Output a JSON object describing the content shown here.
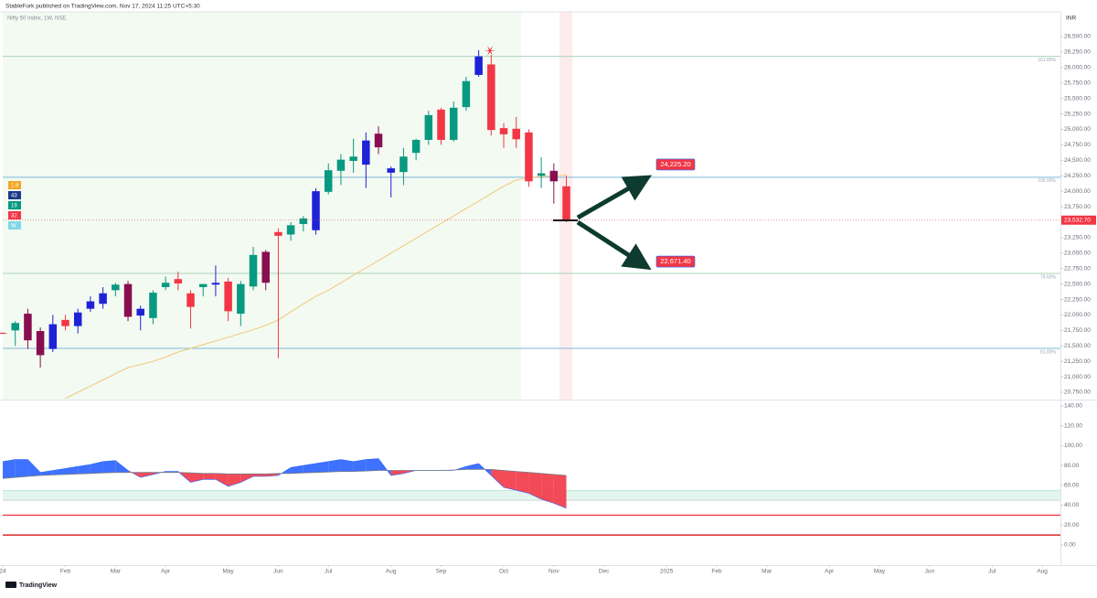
{
  "header": {
    "published": "StableFork published on TradingView.com, Nov 17, 2024 11:25 UTC+5:30"
  },
  "footer": {
    "brand": "TradingView"
  },
  "chart_data": [
    {
      "type": "candlestick",
      "title": "Nifty 50 Index, 1W, NSE",
      "currency": "INR",
      "badges": [
        {
          "label": "1.9",
          "color": "#f5a623"
        },
        {
          "label": "43",
          "color": "#1e3a8a"
        },
        {
          "label": "19",
          "color": "#089981"
        },
        {
          "label": "32",
          "color": "#f23645"
        },
        {
          "label": "W",
          "color": "#7fd8e8"
        }
      ],
      "open": [
        21700,
        21750,
        22020,
        21740,
        21450,
        21920,
        21820,
        22100,
        22180,
        22400,
        22500,
        21990,
        21950,
        22450,
        22580,
        22350,
        22450,
        22490,
        22540,
        22020,
        22460,
        23020,
        23340,
        23300,
        23470,
        23370,
        23990,
        24330,
        24490,
        24430,
        24930,
        24300,
        24310,
        24620,
        24830,
        25320,
        24830,
        25360,
        25880,
        26050,
        25020,
        25010,
        24950,
        24250,
        24330,
        24080
      ],
      "high": [
        21720,
        21900,
        22100,
        21800,
        22000,
        22000,
        22100,
        22300,
        22450,
        22520,
        22550,
        22150,
        22400,
        22620,
        22700,
        22400,
        22500,
        22800,
        22600,
        22550,
        23100,
        23050,
        23400,
        23500,
        23600,
        24050,
        24450,
        24600,
        24850,
        24950,
        25050,
        24400,
        24700,
        24850,
        25300,
        25350,
        25450,
        25850,
        26280,
        26200,
        25100,
        25200,
        25000,
        24550,
        24450,
        24250
      ],
      "low": [
        21690,
        21500,
        21450,
        21150,
        21400,
        21750,
        21700,
        22050,
        22100,
        22300,
        21900,
        21750,
        21850,
        22400,
        22400,
        21780,
        22300,
        22300,
        21900,
        21820,
        22400,
        22400,
        21300,
        23200,
        23350,
        23300,
        23950,
        24100,
        24300,
        24050,
        24600,
        23900,
        24100,
        24500,
        24750,
        24750,
        24800,
        25300,
        25850,
        24900,
        24700,
        24700,
        24070,
        24050,
        23800,
        23500
      ],
      "close": [
        21710,
        21870,
        21590,
        21350,
        21850,
        21820,
        22040,
        22220,
        22350,
        22490,
        21970,
        22100,
        22360,
        22520,
        22510,
        22130,
        22500,
        22520,
        22060,
        22500,
        22970,
        22520,
        23280,
        23450,
        23560,
        24000,
        24340,
        24510,
        24560,
        24820,
        24710,
        24370,
        24560,
        24830,
        25230,
        24830,
        25350,
        25780,
        26180,
        24990,
        24920,
        24840,
        24160,
        24290,
        24160,
        23532.7
      ],
      "colors": [
        "#f23645",
        "#089981",
        "#880e4f",
        "#880e4f",
        "#1e22d6",
        "#f23645",
        "#1e22d6",
        "#1e22d6",
        "#1e22d6",
        "#089981",
        "#880e4f",
        "#1e22d6",
        "#089981",
        "#089981",
        "#f23645",
        "#f23645",
        "#089981",
        "#1e22d6",
        "#f23645",
        "#089981",
        "#089981",
        "#880e4f",
        "#f23645",
        "#089981",
        "#089981",
        "#1e22d6",
        "#089981",
        "#089981",
        "#089981",
        "#1e22d6",
        "#880e4f",
        "#1e22d6",
        "#089981",
        "#089981",
        "#089981",
        "#f23645",
        "#089981",
        "#089981",
        "#1e22d6",
        "#f23645",
        "#f23645",
        "#f23645",
        "#f23645",
        "#089981",
        "#880e4f",
        "#f23645"
      ],
      "overlay": {
        "color": "#f2c879",
        "values": [
          null,
          null,
          null,
          null,
          null,
          20650,
          20750,
          20850,
          20950,
          21050,
          21150,
          21200,
          21250,
          21320,
          21400,
          21460,
          21520,
          21580,
          21640,
          21700,
          21760,
          21830,
          21920,
          22050,
          22180,
          22300,
          22400,
          22520,
          22640,
          22760,
          22880,
          23000,
          23120,
          23240,
          23360,
          23480,
          23600,
          23720,
          23840,
          23960,
          24080,
          24180,
          24220,
          24240,
          24250,
          24260
        ]
      },
      "levels": [
        {
          "value": 26180,
          "label": "161.80%"
        },
        {
          "value": 24225.2,
          "label": "100.00%"
        },
        {
          "value": 22671.4,
          "label": "78.60%"
        },
        {
          "value": 21460,
          "label": "61.80%"
        }
      ],
      "targets": [
        {
          "value": 24225.2,
          "label": "24,225.20"
        },
        {
          "value": 22671.4,
          "label": "22,671.40"
        }
      ],
      "last_price": {
        "value": 23532.7,
        "label": "23,532.70"
      },
      "xlim": [
        -0.22,
        84.45
      ],
      "ylim": [
        20632,
        26899
      ],
      "yticks": [
        {
          "value": 20750,
          "label": "20,750.00"
        },
        {
          "value": 21000,
          "label": "21,000.00"
        },
        {
          "value": 21250,
          "label": "21,250.00"
        },
        {
          "value": 21500,
          "label": "21,500.00"
        },
        {
          "value": 21750,
          "label": "21,750.00"
        },
        {
          "value": 22000,
          "label": "22,000.00"
        },
        {
          "value": 22250,
          "label": "22,250.00"
        },
        {
          "value": 22500,
          "label": "22,500.00"
        },
        {
          "value": 22750,
          "label": "22,750.00"
        },
        {
          "value": 23000,
          "label": "23,000.00"
        },
        {
          "value": 23250,
          "label": "23,250.00"
        },
        {
          "value": 23500,
          "label": "23,500.00"
        },
        {
          "value": 23750,
          "label": "23,750.00"
        },
        {
          "value": 24000,
          "label": "24,000.00"
        },
        {
          "value": 24250,
          "label": "24,250.00"
        },
        {
          "value": 24500,
          "label": "24,500.00"
        },
        {
          "value": 24750,
          "label": "24,750.00"
        },
        {
          "value": 25000,
          "label": "25,000.00"
        },
        {
          "value": 25250,
          "label": "25,250.00"
        },
        {
          "value": 25500,
          "label": "25,500.00"
        },
        {
          "value": 25750,
          "label": "25,750.00"
        },
        {
          "value": 26000,
          "label": "26,000.00"
        },
        {
          "value": 26250,
          "label": "26,250.00"
        },
        {
          "value": 26500,
          "label": "26,500.00"
        }
      ]
    },
    {
      "type": "line",
      "series": [
        {
          "color": "#2962ff",
          "values": [
            84,
            86,
            86,
            73,
            75,
            77,
            79,
            81,
            84,
            85,
            75,
            68,
            71,
            74,
            74,
            63,
            66,
            66,
            59,
            63,
            69,
            69,
            70,
            78,
            80,
            82,
            84,
            86,
            84,
            86,
            87,
            70,
            72,
            75,
            75,
            75,
            75,
            79,
            82,
            70,
            58,
            55,
            52,
            46,
            42,
            37
          ]
        },
        {
          "color": "#787b86",
          "values": [
            67,
            68,
            69,
            70,
            70.5,
            71,
            71.5,
            72,
            72.5,
            73,
            73,
            73,
            73,
            73,
            73,
            72.5,
            72,
            72,
            71.5,
            71.5,
            71.5,
            71.5,
            72,
            72,
            72.5,
            73,
            73.5,
            74,
            74,
            74.5,
            75,
            75,
            75,
            75,
            75,
            75,
            75.5,
            76,
            76,
            76,
            75,
            74,
            73,
            72,
            71,
            70
          ]
        }
      ],
      "fill_colors": {
        "above": "#2962ff",
        "below": "#f23645"
      },
      "band": {
        "values": [
          45,
          55
        ],
        "color": "#e3f6ee"
      },
      "hlines": [
        {
          "value": 30,
          "color": "#f23645"
        },
        {
          "value": 10,
          "color": "#d50000"
        }
      ],
      "xlim": [
        -0.22,
        84.45
      ],
      "xticks": [
        {
          "value": 0,
          "label": "24"
        },
        {
          "value": 5,
          "label": "Feb"
        },
        {
          "value": 9,
          "label": "Mar"
        },
        {
          "value": 13,
          "label": "Apr"
        },
        {
          "value": 18,
          "label": "May"
        },
        {
          "value": 22,
          "label": "Jun"
        },
        {
          "value": 26,
          "label": "Jul"
        },
        {
          "value": 31,
          "label": "Aug"
        },
        {
          "value": 35,
          "label": "Sep"
        },
        {
          "value": 40,
          "label": "Oct"
        },
        {
          "value": 44,
          "label": "Nov"
        },
        {
          "value": 48,
          "label": "Dec"
        },
        {
          "value": 53,
          "label": "2025"
        },
        {
          "value": 57,
          "label": "Feb"
        },
        {
          "value": 61,
          "label": "Mar"
        },
        {
          "value": 66,
          "label": "Apr"
        },
        {
          "value": 70,
          "label": "May"
        },
        {
          "value": 74,
          "label": "Jun"
        },
        {
          "value": 79,
          "label": "Jul"
        },
        {
          "value": 83,
          "label": "Aug"
        }
      ],
      "ylim": [
        -20.3,
        146.4
      ],
      "yticks": [
        {
          "value": 0,
          "label": "0.00"
        },
        {
          "value": 20,
          "label": "20.00"
        },
        {
          "value": 40,
          "label": "40.00"
        },
        {
          "value": 60,
          "label": "60.00"
        },
        {
          "value": 80,
          "label": "80.00"
        },
        {
          "value": 100,
          "label": "100.00"
        },
        {
          "value": 120,
          "label": "120.00"
        },
        {
          "value": 140,
          "label": "140.00"
        }
      ]
    }
  ]
}
